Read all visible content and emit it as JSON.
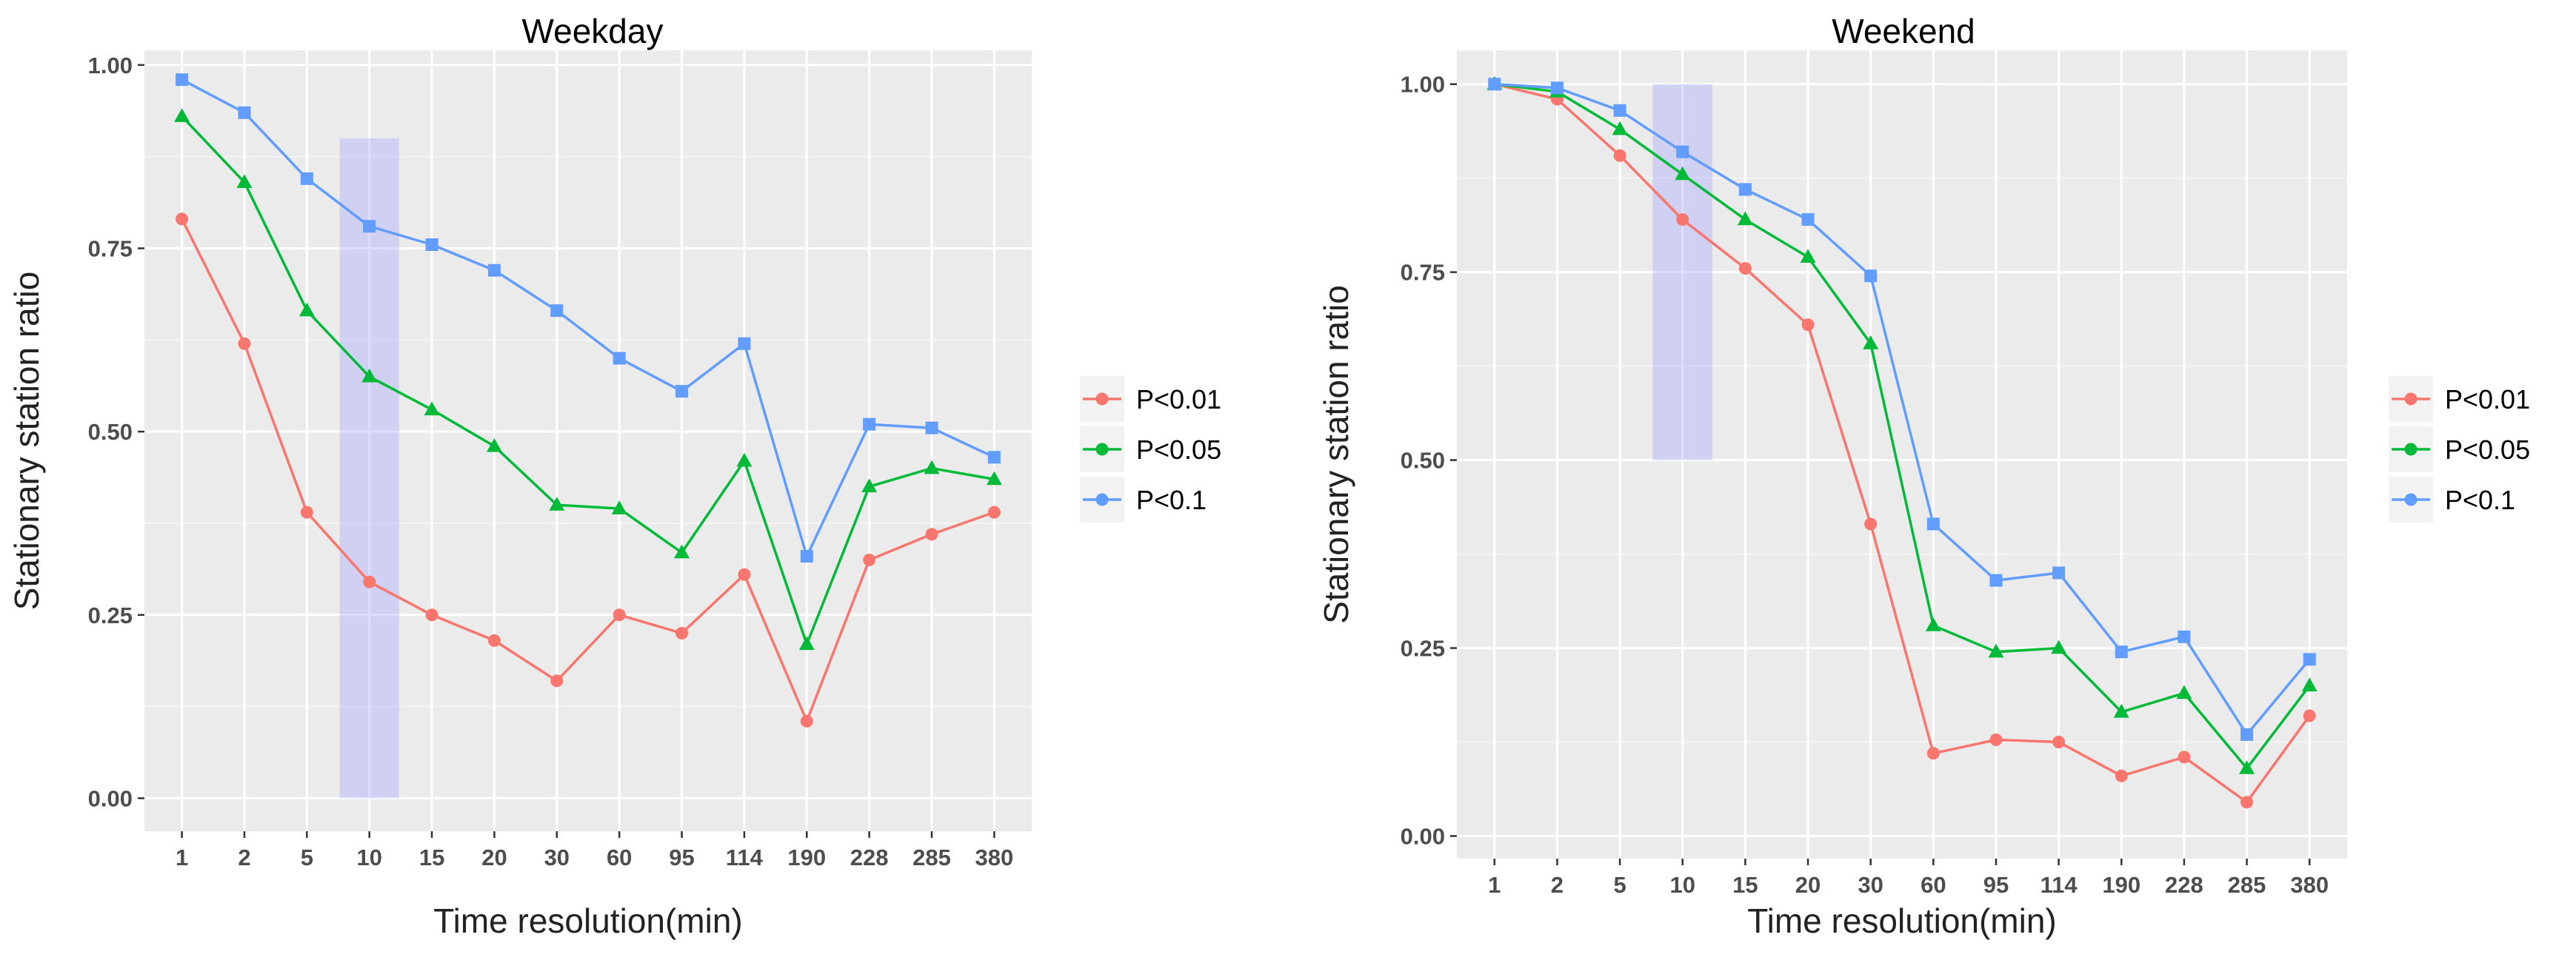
{
  "chart_data": [
    {
      "type": "line",
      "title": "Weekday",
      "xlabel": "Time resolution(min)",
      "ylabel": "Stationary station ratio",
      "categories": [
        "1",
        "2",
        "5",
        "10",
        "15",
        "20",
        "30",
        "60",
        "95",
        "114",
        "190",
        "228",
        "285",
        "380"
      ],
      "ylim": [
        -0.045,
        1.02
      ],
      "yticks": [
        "0.00",
        "0.25",
        "0.50",
        "0.75",
        "1.00"
      ],
      "grid": true,
      "highlight": {
        "category": "10",
        "y_range": [
          0.0,
          0.9
        ]
      },
      "series": [
        {
          "name": "P<0.01",
          "color": "#F8766D",
          "marker": "circle",
          "values": [
            0.79,
            0.62,
            0.39,
            0.295,
            0.25,
            0.215,
            0.16,
            0.25,
            0.225,
            0.305,
            0.105,
            0.325,
            0.36,
            0.39
          ]
        },
        {
          "name": "P<0.05",
          "color": "#00BA38",
          "marker": "triangle",
          "values": [
            0.93,
            0.84,
            0.665,
            0.575,
            0.53,
            0.48,
            0.4,
            0.395,
            0.335,
            0.46,
            0.21,
            0.425,
            0.45,
            0.435
          ]
        },
        {
          "name": "P<0.1",
          "color": "#619CFF",
          "marker": "square",
          "values": [
            0.98,
            0.935,
            0.845,
            0.78,
            0.755,
            0.72,
            0.665,
            0.6,
            0.555,
            0.62,
            0.33,
            0.51,
            0.505,
            0.465
          ]
        }
      ],
      "legend": {
        "position": "right",
        "entries": [
          "P<0.01",
          "P<0.05",
          "P<0.1"
        ]
      }
    },
    {
      "type": "line",
      "title": "Weekend",
      "xlabel": "Time resolution(min)",
      "ylabel": "Stationary station ratio",
      "categories": [
        "1",
        "2",
        "5",
        "10",
        "15",
        "20",
        "30",
        "60",
        "95",
        "114",
        "190",
        "228",
        "285",
        "380"
      ],
      "ylim": [
        -0.03,
        1.045
      ],
      "yticks": [
        "0.00",
        "0.25",
        "0.50",
        "0.75",
        "1.00"
      ],
      "grid": true,
      "highlight": {
        "category": "10",
        "y_range": [
          0.5,
          1.0
        ]
      },
      "series": [
        {
          "name": "P<0.01",
          "color": "#F8766D",
          "marker": "circle",
          "values": [
            1.0,
            0.98,
            0.905,
            0.82,
            0.755,
            0.68,
            0.415,
            0.11,
            0.128,
            0.125,
            0.08,
            0.105,
            0.045,
            0.16
          ]
        },
        {
          "name": "P<0.05",
          "color": "#00BA38",
          "marker": "triangle",
          "values": [
            1.0,
            0.99,
            0.94,
            0.88,
            0.82,
            0.77,
            0.655,
            0.28,
            0.245,
            0.25,
            0.165,
            0.19,
            0.09,
            0.2
          ]
        },
        {
          "name": "P<0.1",
          "color": "#619CFF",
          "marker": "square",
          "values": [
            1.0,
            0.995,
            0.965,
            0.91,
            0.86,
            0.82,
            0.745,
            0.415,
            0.34,
            0.35,
            0.245,
            0.265,
            0.135,
            0.235
          ]
        }
      ],
      "legend": {
        "position": "right",
        "entries": [
          "P<0.01",
          "P<0.05",
          "P<0.1"
        ]
      }
    }
  ]
}
